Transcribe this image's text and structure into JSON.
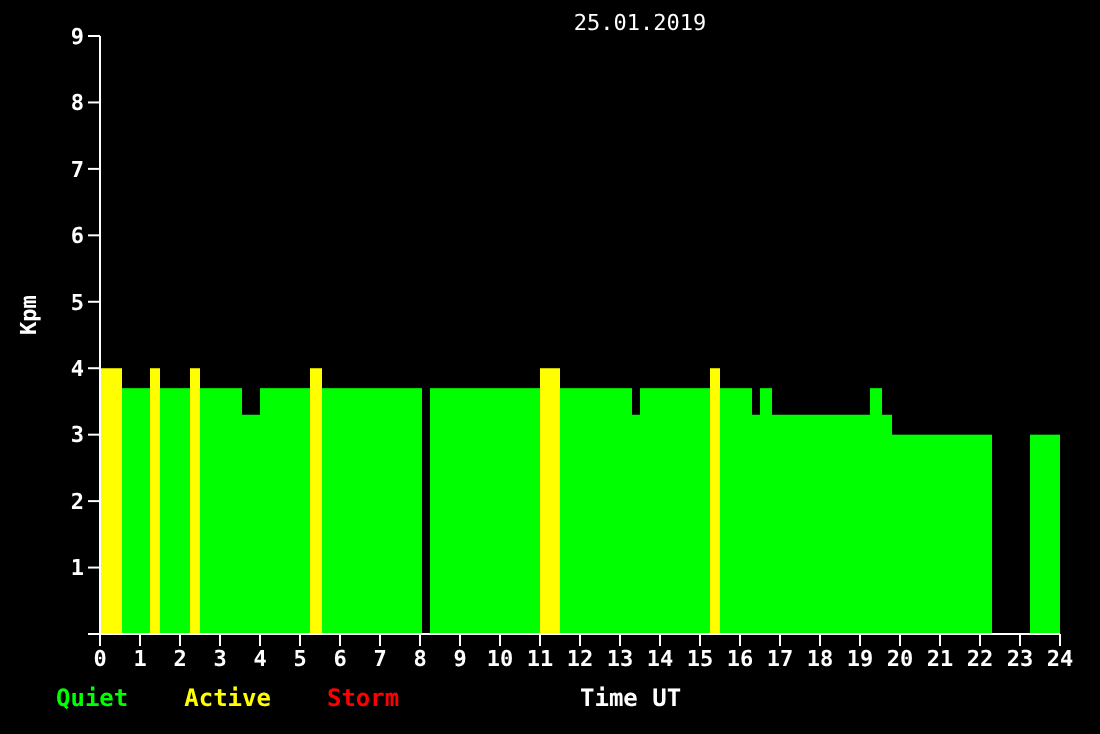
{
  "chart_data": {
    "type": "bar",
    "title": "25.01.2019",
    "xlabel": "Time UT",
    "ylabel": "Kpm",
    "x": [
      0.275,
      0.9,
      1.375,
      1.875,
      2.375,
      3.025,
      3.775,
      4.625,
      5.4,
      6.8,
      8.15,
      9.625,
      11.25,
      12.4,
      13.4,
      14.375,
      15.375,
      15.9,
      16.4,
      16.65,
      18.025,
      19.4,
      19.675,
      21.05,
      22.775,
      23.625
    ],
    "series": [
      {
        "name": "Quiet",
        "color": "#00ff00",
        "values": [
          null,
          3.7,
          null,
          3.7,
          null,
          3.7,
          3.3,
          3.7,
          null,
          3.7,
          null,
          3.7,
          null,
          3.7,
          3.3,
          3.7,
          null,
          3.7,
          3.3,
          3.7,
          3.3,
          3.7,
          3.3,
          3,
          null,
          3
        ]
      },
      {
        "name": "Active",
        "color": "#ffff00",
        "values": [
          4,
          null,
          4,
          null,
          4,
          null,
          null,
          null,
          4,
          null,
          null,
          null,
          4,
          null,
          null,
          null,
          4,
          null,
          null,
          null,
          null,
          null,
          null,
          null,
          null,
          null
        ]
      },
      {
        "name": "Storm",
        "color": "#ff0000",
        "values": [
          null,
          null,
          null,
          null,
          null,
          null,
          null,
          null,
          null,
          null,
          null,
          null,
          null,
          null,
          null,
          null,
          null,
          null,
          null,
          null,
          null,
          null,
          null,
          null,
          null,
          null
        ]
      }
    ],
    "xlim": [
      0,
      24
    ],
    "xticks": [
      0,
      1,
      2,
      3,
      4,
      5,
      6,
      7,
      8,
      9,
      10,
      11,
      12,
      13,
      14,
      15,
      16,
      17,
      18,
      19,
      20,
      21,
      22,
      23,
      24
    ],
    "ylim": [
      0,
      9
    ],
    "yticks": [
      {
        "value": 0,
        "label": null
      },
      1,
      2,
      3,
      4,
      5,
      6,
      7,
      8,
      9
    ],
    "grid": false,
    "legend": "bottom left"
  }
}
